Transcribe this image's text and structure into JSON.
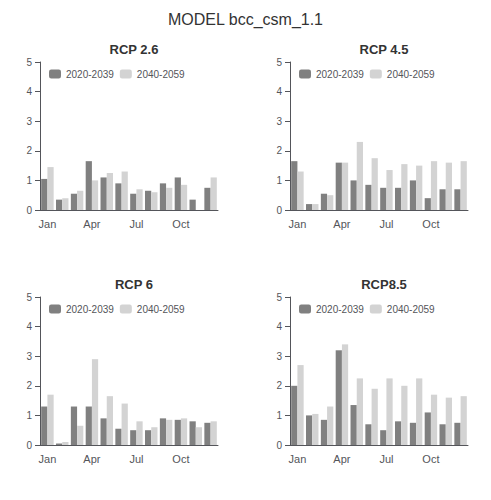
{
  "title": "MODEL bcc_csm_1.1",
  "chart_data": [
    {
      "type": "bar",
      "title": "RCP 2.6",
      "categories": [
        "Jan",
        null,
        null,
        "Apr",
        null,
        null,
        "Jul",
        null,
        null,
        "Oct",
        null,
        null
      ],
      "series": [
        {
          "name": "2020-2039",
          "color": "#808080",
          "values": [
            1.05,
            0.35,
            0.55,
            1.65,
            1.1,
            0.9,
            0.55,
            0.65,
            0.9,
            1.1,
            0.35,
            0.75
          ]
        },
        {
          "name": "2040-2059",
          "color": "#d3d3d3",
          "values": [
            1.45,
            0.4,
            0.65,
            1.0,
            1.25,
            1.3,
            0.7,
            0.6,
            0.75,
            0.85,
            0.0,
            1.1
          ]
        }
      ],
      "ylim": [
        0,
        5
      ],
      "yticks": [
        0,
        1,
        2,
        3,
        4,
        5
      ],
      "grid": false,
      "legend": "upper left"
    },
    {
      "type": "bar",
      "title": "RCP 4.5",
      "categories": [
        "Jan",
        null,
        null,
        "Apr",
        null,
        null,
        "Jul",
        null,
        null,
        "Oct",
        null,
        null
      ],
      "series": [
        {
          "name": "2020-2039",
          "color": "#808080",
          "values": [
            1.65,
            0.2,
            0.55,
            1.6,
            1.0,
            0.85,
            0.75,
            0.75,
            1.0,
            0.4,
            0.7,
            0.7
          ]
        },
        {
          "name": "2040-2059",
          "color": "#d3d3d3",
          "values": [
            1.3,
            0.2,
            0.5,
            1.6,
            2.3,
            1.75,
            1.35,
            1.55,
            1.5,
            1.65,
            1.6,
            1.65
          ]
        }
      ],
      "ylim": [
        0,
        5
      ],
      "yticks": [
        0,
        1,
        2,
        3,
        4,
        5
      ],
      "grid": false,
      "legend": "upper left"
    },
    {
      "type": "bar",
      "title": "RCP 6",
      "categories": [
        "Jan",
        null,
        null,
        "Apr",
        null,
        null,
        "Jul",
        null,
        null,
        "Oct",
        null,
        null
      ],
      "series": [
        {
          "name": "2020-2039",
          "color": "#808080",
          "values": [
            1.3,
            0.05,
            1.3,
            1.3,
            0.9,
            0.55,
            0.5,
            0.5,
            0.9,
            0.85,
            0.8,
            0.75
          ]
        },
        {
          "name": "2040-2059",
          "color": "#d3d3d3",
          "values": [
            1.7,
            0.1,
            0.65,
            2.9,
            1.65,
            1.4,
            0.8,
            0.6,
            0.85,
            0.9,
            0.6,
            0.8
          ]
        }
      ],
      "ylim": [
        0,
        5
      ],
      "yticks": [
        0,
        1,
        2,
        3,
        4,
        5
      ],
      "grid": false,
      "legend": "upper left"
    },
    {
      "type": "bar",
      "title": "RCP8.5",
      "categories": [
        "Jan",
        null,
        null,
        "Apr",
        null,
        null,
        "Jul",
        null,
        null,
        "Oct",
        null,
        null
      ],
      "series": [
        {
          "name": "2020-2039",
          "color": "#808080",
          "values": [
            2.0,
            1.0,
            0.85,
            3.2,
            1.35,
            0.7,
            0.5,
            0.8,
            0.75,
            1.1,
            0.7,
            0.75
          ]
        },
        {
          "name": "2040-2059",
          "color": "#d3d3d3",
          "values": [
            2.7,
            1.05,
            1.3,
            3.4,
            2.25,
            1.9,
            2.25,
            2.0,
            2.25,
            1.7,
            1.6,
            1.65
          ]
        }
      ],
      "ylim": [
        0,
        5
      ],
      "yticks": [
        0,
        1,
        2,
        3,
        4,
        5
      ],
      "grid": false,
      "legend": "upper left"
    }
  ]
}
